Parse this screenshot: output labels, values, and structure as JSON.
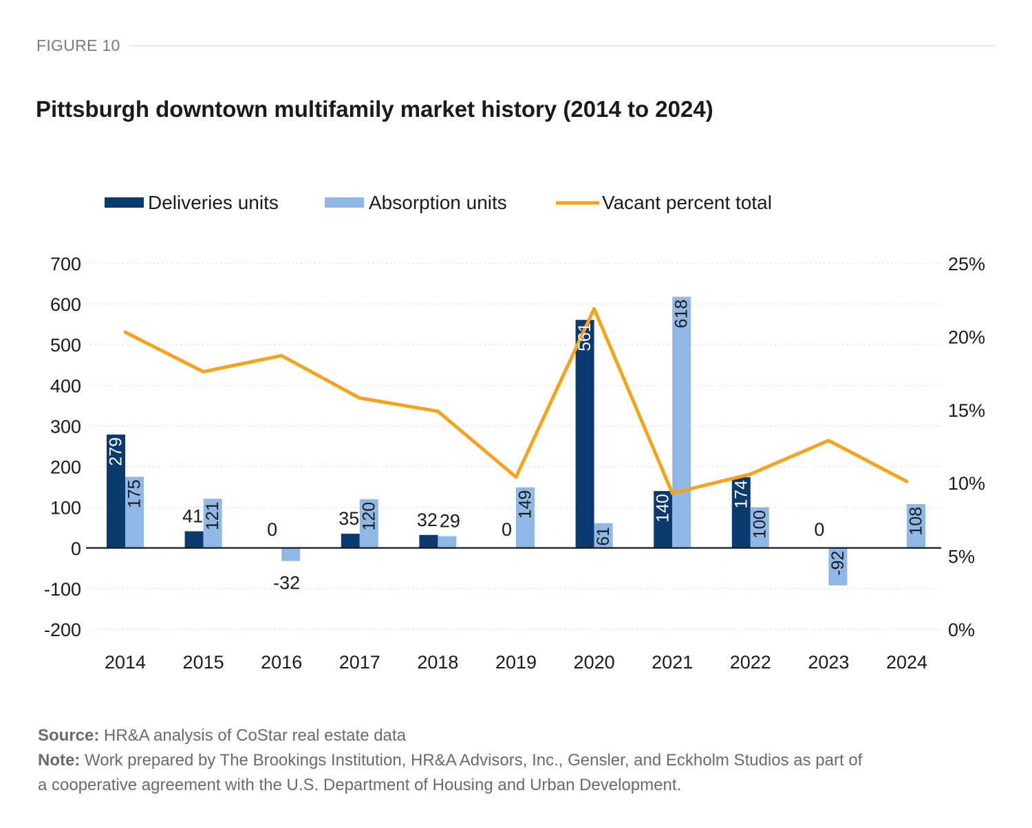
{
  "figure_label": "FIGURE 10",
  "chart_data": {
    "type": "bar",
    "title": "Pittsburgh downtown multifamily market history (2014 to 2024)",
    "categories": [
      "2014",
      "2015",
      "2016",
      "2017",
      "2018",
      "2019",
      "2020",
      "2021",
      "2022",
      "2023",
      "2024"
    ],
    "series": [
      {
        "name": "Deliveries units",
        "type": "bar",
        "axis": "left",
        "color": "#0b3a6e",
        "values": [
          279,
          41,
          0,
          35,
          32,
          0,
          561,
          140,
          174,
          0,
          0
        ],
        "labels": [
          "279",
          "41",
          "0",
          "35",
          "32",
          "0",
          "561",
          "140",
          "174",
          "0",
          ""
        ]
      },
      {
        "name": "Absorption units",
        "type": "bar",
        "axis": "left",
        "color": "#8fb8e6",
        "values": [
          175,
          121,
          -32,
          120,
          29,
          149,
          61,
          618,
          100,
          -92,
          108
        ],
        "labels": [
          "175",
          "121",
          "-32",
          "120",
          "29",
          "149",
          "61",
          "618",
          "100",
          "-92",
          "108"
        ]
      },
      {
        "name": "Vacant percent total",
        "type": "line",
        "axis": "right",
        "color": "#f7a21b",
        "values": [
          20.3,
          17.6,
          18.7,
          15.8,
          14.9,
          10.4,
          21.9,
          9.3,
          10.6,
          12.9,
          10.1
        ]
      }
    ],
    "y_left": {
      "min": -200,
      "max": 700,
      "ticks": [
        "-200",
        "-100",
        "0",
        "100",
        "200",
        "300",
        "400",
        "500",
        "600",
        "700"
      ]
    },
    "y_right": {
      "min": 0,
      "max": 25,
      "ticks": [
        "0%",
        "5%",
        "10%",
        "15%",
        "20%",
        "25%"
      ]
    },
    "grid": "dotted horizontal",
    "legend_position": "top"
  },
  "footer": {
    "source_label": "Source:",
    "source_text": " HR&A analysis of CoStar real estate data",
    "note_label": "Note:",
    "note_line1": " Work prepared by The Brookings Institution, HR&A Advisors, Inc., Gensler, and Eckholm Studios as part of",
    "note_line2": "a cooperative agreement with the U.S. Department of Housing and Urban Development."
  }
}
